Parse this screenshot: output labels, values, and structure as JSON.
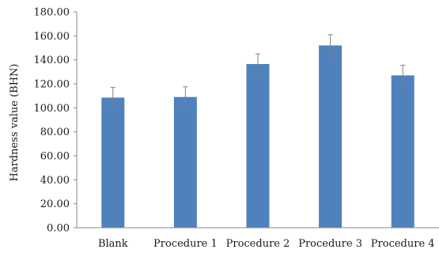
{
  "chart_data": {
    "type": "bar",
    "title": "",
    "xlabel": "",
    "ylabel": "Hardness value (BHN)",
    "ylim": [
      0,
      180
    ],
    "yticks": [
      "0.00",
      "20.00",
      "40.00",
      "60.00",
      "80.00",
      "100.00",
      "120.00",
      "140.00",
      "160.00",
      "180.00"
    ],
    "categories": [
      "Blank",
      "Procedure 1",
      "Procedure 2",
      "Procedure 3",
      "Procedure 4"
    ],
    "series": [
      {
        "values": [
          108.5,
          109,
          136.5,
          152,
          127
        ],
        "errors": [
          8.5,
          8.5,
          8.5,
          9,
          8.5
        ]
      }
    ],
    "bar_color": "#4f81bd",
    "error_bar_color": "#808080",
    "grid": false,
    "legend": "none"
  }
}
